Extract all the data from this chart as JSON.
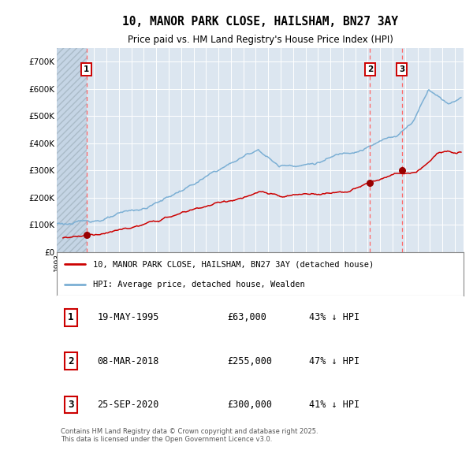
{
  "title_line1": "10, MANOR PARK CLOSE, HAILSHAM, BN27 3AY",
  "title_line2": "Price paid vs. HM Land Registry's House Price Index (HPI)",
  "plot_bg_color": "#dce6f0",
  "grid_color": "#ffffff",
  "red_line_color": "#cc0000",
  "blue_line_color": "#7bafd4",
  "red_dot_color": "#990000",
  "dashed_color": "#ff6666",
  "transactions": [
    {
      "label": "1",
      "date_str": "19-MAY-1995",
      "price": 63000,
      "pct": "43% ↓ HPI",
      "x_year": 1995.38
    },
    {
      "label": "2",
      "date_str": "08-MAR-2018",
      "price": 255000,
      "pct": "47% ↓ HPI",
      "x_year": 2018.18
    },
    {
      "label": "3",
      "date_str": "25-SEP-2020",
      "price": 300000,
      "pct": "41% ↓ HPI",
      "x_year": 2020.73
    }
  ],
  "legend_entry1": "10, MANOR PARK CLOSE, HAILSHAM, BN27 3AY (detached house)",
  "legend_entry2": "HPI: Average price, detached house, Wealden",
  "footnote": "Contains HM Land Registry data © Crown copyright and database right 2025.\nThis data is licensed under the Open Government Licence v3.0.",
  "ylim": [
    0,
    750000
  ],
  "xlim_start": 1993.0,
  "xlim_end": 2025.7
}
